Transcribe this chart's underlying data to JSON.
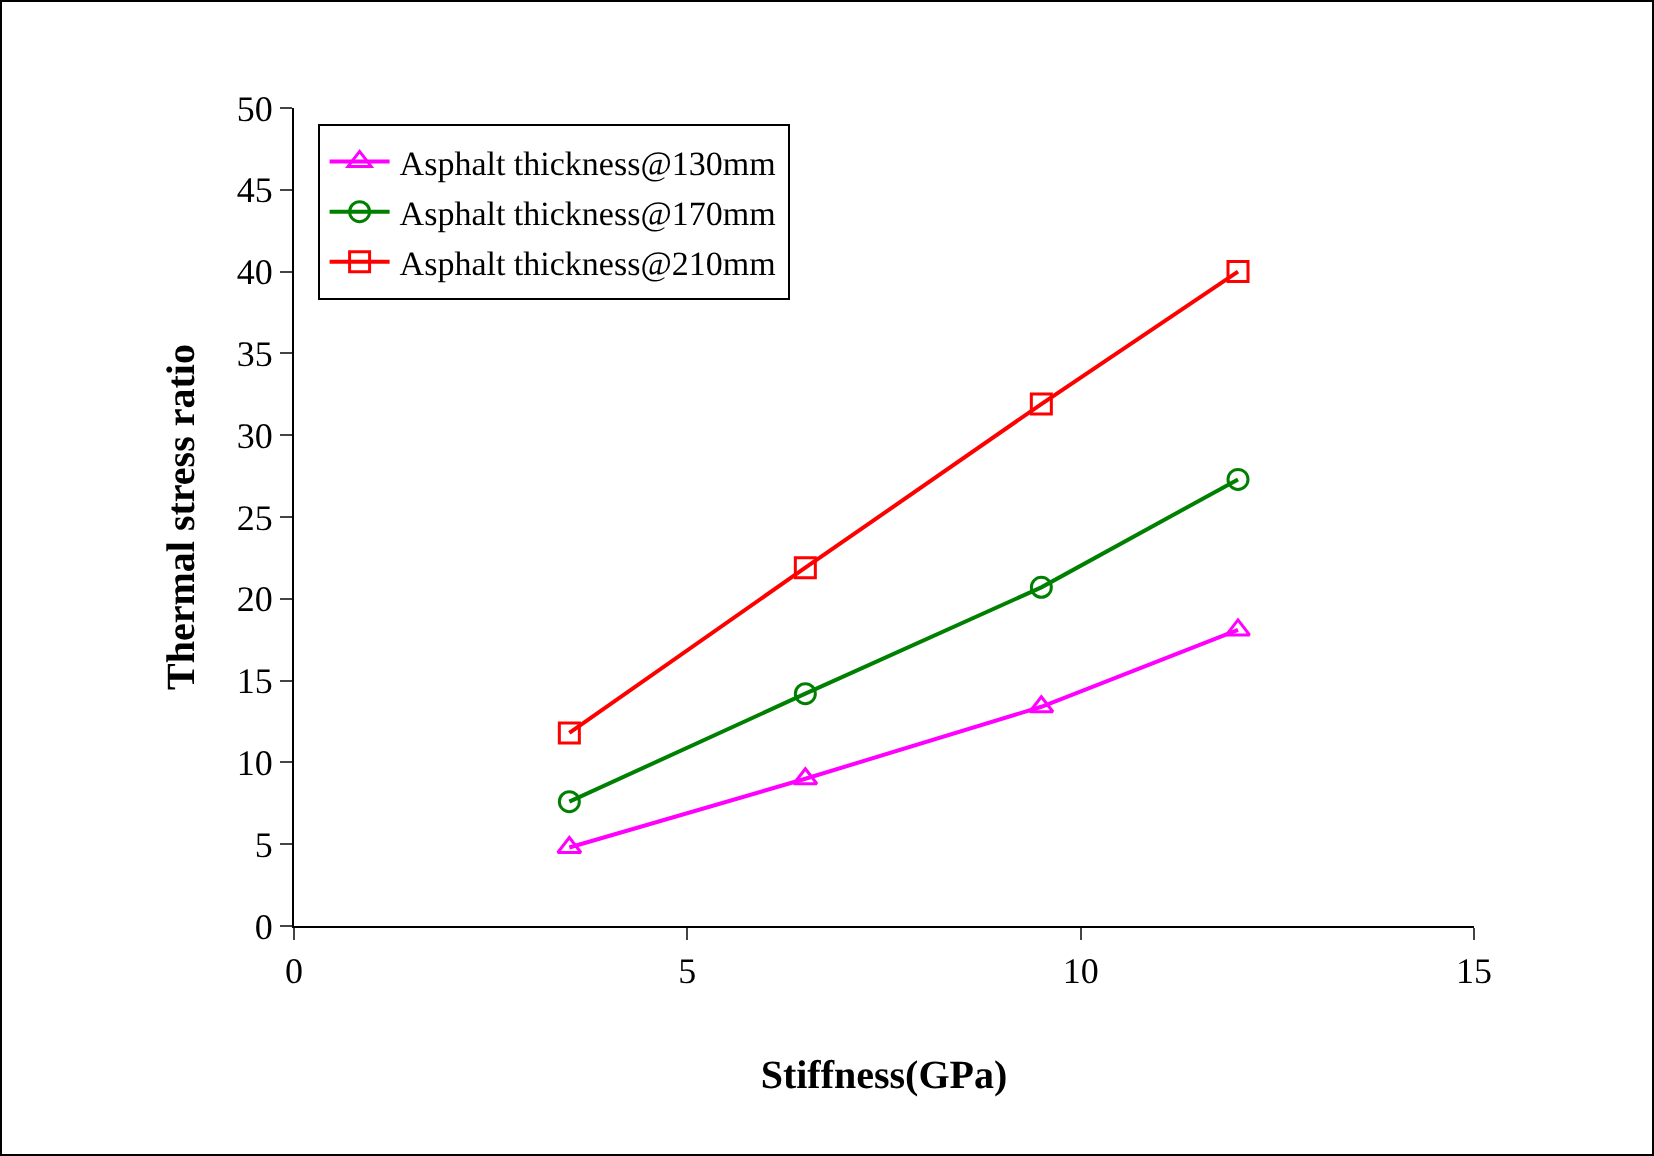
{
  "chart_data": {
    "type": "line",
    "xlabel": "Stiffness(GPa)",
    "ylabel": "Thermal stress ratio",
    "xlim": [
      0,
      15
    ],
    "xticks": [
      0,
      5,
      10,
      15
    ],
    "ylim": [
      0,
      50
    ],
    "yticks": [
      0,
      5,
      10,
      15,
      20,
      25,
      30,
      35,
      40,
      45,
      50
    ],
    "grid": false,
    "legend": "top left",
    "line_style": "solid",
    "series": [
      {
        "name": "Asphalt thickness@130mm",
        "color": "#ff00ff",
        "marker": "triangle",
        "x": [
          3.5,
          6.5,
          9.5,
          12
        ],
        "values": [
          4.8,
          9.0,
          13.4,
          18.1
        ]
      },
      {
        "name": "Asphalt thickness@170mm",
        "color": "#008000",
        "marker": "circle",
        "x": [
          3.5,
          6.5,
          9.5,
          12
        ],
        "values": [
          7.6,
          14.2,
          20.7,
          27.3
        ]
      },
      {
        "name": "Asphalt thickness@210mm",
        "color": "#ff0000",
        "marker": "square",
        "x": [
          3.5,
          6.5,
          9.5,
          12
        ],
        "values": [
          11.8,
          21.9,
          31.9,
          40.0
        ]
      }
    ]
  }
}
